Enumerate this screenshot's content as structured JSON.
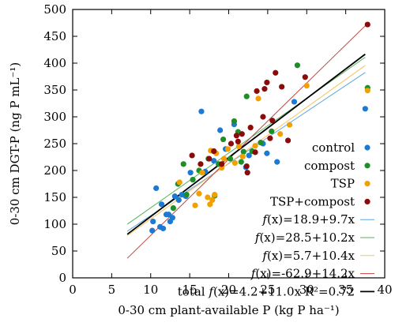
{
  "chart_data": {
    "type": "scatter",
    "xlabel": "0-30 cm plant-available P (kg P ha⁻¹)",
    "ylabel": "0-30 cm DGT-P (ng P mL⁻¹)",
    "xlim": [
      0,
      40
    ],
    "ylim": [
      0,
      500
    ],
    "xticks": [
      0,
      5,
      10,
      15,
      20,
      25,
      30,
      35,
      40
    ],
    "yticks": [
      0,
      50,
      100,
      150,
      200,
      250,
      300,
      350,
      400,
      450,
      500
    ],
    "grid": false,
    "legend_position": "bottom-right",
    "series": [
      {
        "name": "control",
        "color": "#1a7ad4",
        "points": [
          [
            10.2,
            88
          ],
          [
            10.3,
            105
          ],
          [
            10.7,
            167
          ],
          [
            11.2,
            95
          ],
          [
            11.4,
            137
          ],
          [
            11.6,
            92
          ],
          [
            12.0,
            118
          ],
          [
            12.3,
            118
          ],
          [
            12.5,
            105
          ],
          [
            12.8,
            112
          ],
          [
            13.1,
            152
          ],
          [
            13.6,
            145
          ],
          [
            14.0,
            155
          ],
          [
            14.5,
            152
          ],
          [
            15.1,
            196
          ],
          [
            16.5,
            310
          ],
          [
            17.0,
            198
          ],
          [
            18.1,
            218
          ],
          [
            18.9,
            275
          ],
          [
            19.6,
            240
          ],
          [
            20.7,
            286
          ],
          [
            22.2,
            206
          ],
          [
            22.6,
            228
          ],
          [
            24.4,
            250
          ],
          [
            24.9,
            232
          ],
          [
            26.2,
            216
          ],
          [
            28.4,
            328
          ],
          [
            37.5,
            315
          ]
        ]
      },
      {
        "name": "compost",
        "color": "#1e8e28",
        "points": [
          [
            12.9,
            130
          ],
          [
            13.5,
            175
          ],
          [
            14.2,
            212
          ],
          [
            14.6,
            155
          ],
          [
            15.4,
            183
          ],
          [
            16.2,
            200
          ],
          [
            17.4,
            222
          ],
          [
            18.2,
            153
          ],
          [
            18.7,
            212
          ],
          [
            19.3,
            258
          ],
          [
            20.2,
            222
          ],
          [
            20.7,
            292
          ],
          [
            21.2,
            272
          ],
          [
            21.6,
            216
          ],
          [
            21.9,
            235
          ],
          [
            22.3,
            338
          ],
          [
            23.0,
            236
          ],
          [
            24.1,
            252
          ],
          [
            25.5,
            273
          ],
          [
            28.8,
            396
          ],
          [
            37.8,
            354
          ]
        ]
      },
      {
        "name": "TSP",
        "color": "#f2a000",
        "points": [
          [
            13.7,
            178
          ],
          [
            15.7,
            135
          ],
          [
            16.2,
            157
          ],
          [
            16.6,
            196
          ],
          [
            17.3,
            150
          ],
          [
            17.6,
            137
          ],
          [
            17.9,
            145
          ],
          [
            18.2,
            155
          ],
          [
            17.7,
            237
          ],
          [
            18.4,
            232
          ],
          [
            19.1,
            205
          ],
          [
            19.4,
            222
          ],
          [
            19.9,
            240
          ],
          [
            20.8,
            214
          ],
          [
            21.3,
            245
          ],
          [
            21.8,
            226
          ],
          [
            23.4,
            246
          ],
          [
            23.8,
            334
          ],
          [
            26.6,
            268
          ],
          [
            27.8,
            285
          ],
          [
            30.0,
            358
          ],
          [
            37.8,
            349
          ]
        ]
      },
      {
        "name": "TSP+compost",
        "color": "#8b0a0a",
        "points": [
          [
            15.3,
            228
          ],
          [
            16.4,
            212
          ],
          [
            17.5,
            222
          ],
          [
            18.1,
            236
          ],
          [
            19.1,
            212
          ],
          [
            20.3,
            250
          ],
          [
            21.2,
            254
          ],
          [
            21.0,
            265
          ],
          [
            21.7,
            268
          ],
          [
            22.4,
            196
          ],
          [
            22.8,
            280
          ],
          [
            22.3,
            208
          ],
          [
            23.4,
            234
          ],
          [
            23.6,
            348
          ],
          [
            24.4,
            300
          ],
          [
            24.6,
            352
          ],
          [
            24.9,
            364
          ],
          [
            25.3,
            260
          ],
          [
            25.6,
            293
          ],
          [
            26.0,
            382
          ],
          [
            26.8,
            356
          ],
          [
            27.6,
            256
          ],
          [
            29.8,
            374
          ],
          [
            37.8,
            472
          ]
        ]
      }
    ],
    "fits": [
      {
        "name": "f(x)=18.9+9.7x",
        "prefix": "",
        "f": "f",
        "expr": "(x)=18.9+9.7x",
        "suffix": "",
        "color": "#5aa8e0",
        "intercept": 18.9,
        "slope": 9.7,
        "x_range": [
          7,
          37.5
        ]
      },
      {
        "name": "f(x)=28.5+10.2x",
        "prefix": "",
        "f": "f",
        "expr": "(x)=28.5+10.2x",
        "suffix": "",
        "color": "#58b25c",
        "intercept": 28.5,
        "slope": 10.2,
        "x_range": [
          7,
          37.5
        ]
      },
      {
        "name": "f(x)=5.7+10.4x",
        "prefix": "",
        "f": "f",
        "expr": "(x)=5.7+10.4x",
        "suffix": "",
        "color": "#f6c25a",
        "intercept": 5.7,
        "slope": 10.4,
        "x_range": [
          7,
          37.5
        ]
      },
      {
        "name": "f(x)=-62.9+14.2x",
        "prefix": "",
        "f": "f",
        "expr": "(x)=-62.9+14.2x",
        "suffix": "",
        "color": "#c0453f",
        "intercept": -62.9,
        "slope": 14.2,
        "x_range": [
          7,
          37.5
        ]
      },
      {
        "name": "total f(x)=4.2+11.0x R²=0.72",
        "prefix": "total ",
        "f": "f",
        "expr": "(x)=4.2+11.0x R²=0.72",
        "suffix": "",
        "color": "#000000",
        "intercept": 4.2,
        "slope": 11.0,
        "x_range": [
          7,
          37.5
        ]
      }
    ]
  }
}
